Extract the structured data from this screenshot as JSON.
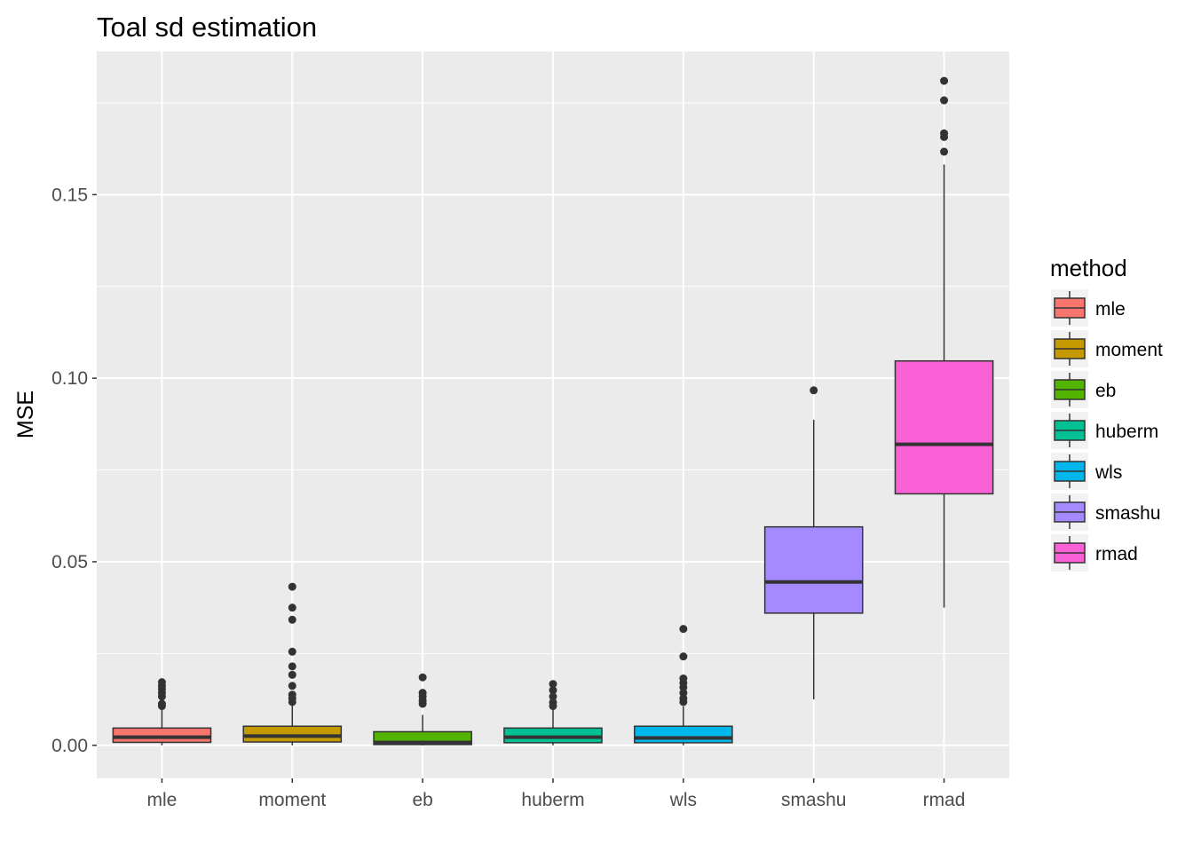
{
  "chart_data": {
    "type": "boxplot",
    "title": "Toal sd estimation",
    "xlabel": "",
    "ylabel": "MSE",
    "ylim": [
      -0.009,
      0.189
    ],
    "yticks": [
      0.0,
      0.05,
      0.1,
      0.15
    ],
    "ytick_labels": [
      "0.00",
      "0.05",
      "0.10",
      "0.15"
    ],
    "grid": true,
    "legend": {
      "title": "method",
      "position": "right"
    },
    "categories": [
      "mle",
      "moment",
      "eb",
      "huberm",
      "wls",
      "smashu",
      "rmad"
    ],
    "series": [
      {
        "name": "mle",
        "color": "#F8766D",
        "q1": 0.0008,
        "median": 0.0022,
        "q3": 0.0047,
        "whisker_low": 0.0,
        "whisker_high": 0.0098,
        "outliers": [
          0.0107,
          0.0113,
          0.0133,
          0.0143,
          0.0153,
          0.0162,
          0.0172
        ]
      },
      {
        "name": "moment",
        "color": "#C49A00",
        "q1": 0.0009,
        "median": 0.0025,
        "q3": 0.0052,
        "whisker_low": 0.0,
        "whisker_high": 0.0108,
        "outliers": [
          0.0118,
          0.0128,
          0.0138,
          0.0162,
          0.0192,
          0.0215,
          0.0255,
          0.0342,
          0.0375,
          0.0432
        ]
      },
      {
        "name": "eb",
        "color": "#53B400",
        "q1": 0.0002,
        "median": 0.0008,
        "q3": 0.0037,
        "whisker_low": 0.0,
        "whisker_high": 0.0083,
        "outliers": [
          0.0113,
          0.0122,
          0.0133,
          0.0143,
          0.0185
        ]
      },
      {
        "name": "huberm",
        "color": "#00C094",
        "q1": 0.0007,
        "median": 0.0022,
        "q3": 0.0047,
        "whisker_low": 0.0,
        "whisker_high": 0.0097,
        "outliers": [
          0.0107,
          0.0117,
          0.0133,
          0.015,
          0.0167
        ]
      },
      {
        "name": "wls",
        "color": "#00B6EB",
        "q1": 0.0007,
        "median": 0.002,
        "q3": 0.0052,
        "whisker_low": 0.0,
        "whisker_high": 0.0106,
        "outliers": [
          0.0118,
          0.0128,
          0.0143,
          0.0158,
          0.017,
          0.0182,
          0.0242,
          0.0317
        ]
      },
      {
        "name": "smashu",
        "color": "#A58AFF",
        "q1": 0.036,
        "median": 0.0445,
        "q3": 0.0595,
        "whisker_low": 0.0125,
        "whisker_high": 0.0887,
        "outliers": [
          0.0967
        ]
      },
      {
        "name": "rmad",
        "color": "#FB61D7",
        "q1": 0.0685,
        "median": 0.082,
        "q3": 0.1047,
        "whisker_low": 0.0375,
        "whisker_high": 0.1582,
        "outliers": [
          0.1617,
          0.1657,
          0.1667,
          0.1757,
          0.181
        ]
      }
    ]
  }
}
